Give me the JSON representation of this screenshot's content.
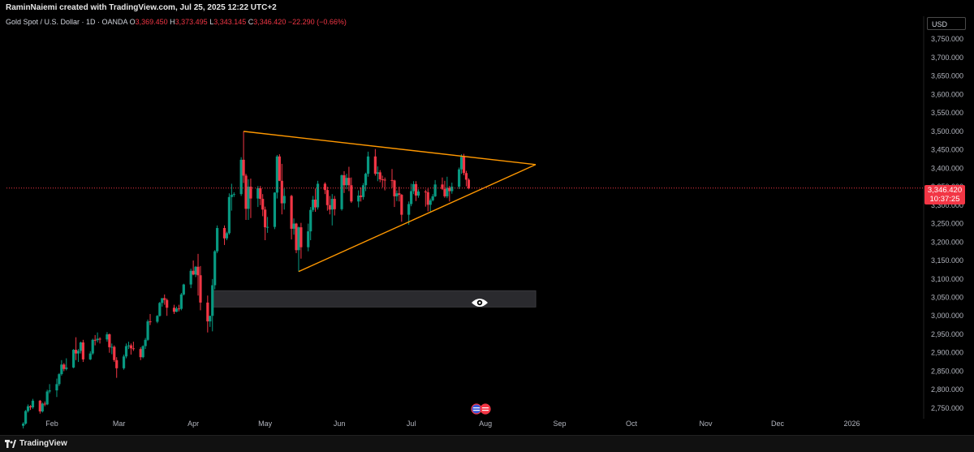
{
  "header": {
    "created_by": "RaminNaiemi created with TradingView.com, Jul 25, 2025 12:22 UTC+2"
  },
  "legend": {
    "symbol": "Gold Spot / U.S. Dollar · 1D · OANDA",
    "o_label": "O",
    "o_value": "3,369.450",
    "h_label": "H",
    "h_value": "3,373.495",
    "l_label": "L",
    "l_value": "3,343.145",
    "c_label": "C",
    "c_value": "3,346.420",
    "change": "−22.290 (−0.66%)"
  },
  "currency": "USD",
  "last_price": {
    "price": "3,346.420",
    "countdown": "10:37:25"
  },
  "footer": {
    "brand": "TradingView"
  },
  "colors": {
    "up": "#089981",
    "down": "#f23645",
    "pattern": "#ff9800",
    "background": "#000000",
    "price_line": "#f23645"
  },
  "chart_data": {
    "type": "candlestick",
    "symbol": "XAUUSD",
    "timeframe": "1D",
    "y_ticks": [
      2750,
      2800,
      2850,
      2900,
      2950,
      3000,
      3050,
      3100,
      3150,
      3200,
      3250,
      3300,
      3350,
      3400,
      3450,
      3500,
      3550,
      3600,
      3650,
      3700,
      3750
    ],
    "y_tick_labels": [
      "2,750.000",
      "2,800.000",
      "2,850.000",
      "2,900.000",
      "2,950.000",
      "3,000.000",
      "3,050.000",
      "3,100.000",
      "3,150.000",
      "3,200.000",
      "3,250.000",
      "3,300.000",
      "3,350.000",
      "3,400.000",
      "3,450.000",
      "3,500.000",
      "3,550.000",
      "3,600.000",
      "3,650.000",
      "3,700.000",
      "3,750.000"
    ],
    "ylim": [
      2730,
      3790
    ],
    "x_ticks": [
      "Feb",
      "Mar",
      "Apr",
      "May",
      "Jun",
      "Jul",
      "Aug",
      "Sep",
      "Oct",
      "Nov",
      "Dec",
      "2026"
    ],
    "x_tick_dates": [
      "2025-02-01",
      "2025-03-01",
      "2025-04-01",
      "2025-05-01",
      "2025-06-01",
      "2025-07-01",
      "2025-08-01",
      "2025-09-01",
      "2025-10-01",
      "2025-11-01",
      "2025-12-01",
      "2026-01-01"
    ],
    "xlim": [
      "2025-01-13",
      "2026-01-31"
    ],
    "current_price": 3346.42,
    "candles": [
      [
        "2025-01-20",
        2702,
        2712,
        2695,
        2708
      ],
      [
        "2025-01-21",
        2708,
        2745,
        2705,
        2742
      ],
      [
        "2025-01-22",
        2742,
        2760,
        2738,
        2755
      ],
      [
        "2025-01-23",
        2755,
        2758,
        2745,
        2752
      ],
      [
        "2025-01-24",
        2752,
        2775,
        2748,
        2770
      ],
      [
        "2025-01-27",
        2770,
        2772,
        2735,
        2741
      ],
      [
        "2025-01-28",
        2741,
        2765,
        2738,
        2762
      ],
      [
        "2025-01-29",
        2762,
        2768,
        2755,
        2760
      ],
      [
        "2025-01-30",
        2760,
        2800,
        2758,
        2795
      ],
      [
        "2025-01-31",
        2795,
        2815,
        2790,
        2798
      ],
      [
        "2025-02-03",
        2798,
        2830,
        2780,
        2815
      ],
      [
        "2025-02-04",
        2815,
        2845,
        2810,
        2842
      ],
      [
        "2025-02-05",
        2842,
        2880,
        2838,
        2868
      ],
      [
        "2025-02-06",
        2868,
        2872,
        2850,
        2856
      ],
      [
        "2025-02-07",
        2856,
        2885,
        2852,
        2860
      ],
      [
        "2025-02-10",
        2860,
        2910,
        2858,
        2908
      ],
      [
        "2025-02-11",
        2908,
        2942,
        2880,
        2898
      ],
      [
        "2025-02-12",
        2898,
        2910,
        2875,
        2905
      ],
      [
        "2025-02-13",
        2905,
        2930,
        2898,
        2928
      ],
      [
        "2025-02-14",
        2928,
        2935,
        2875,
        2882
      ],
      [
        "2025-02-17",
        2882,
        2904,
        2880,
        2898
      ],
      [
        "2025-02-18",
        2898,
        2938,
        2894,
        2935
      ],
      [
        "2025-02-19",
        2935,
        2948,
        2920,
        2934
      ],
      [
        "2025-02-20",
        2934,
        2955,
        2928,
        2938
      ],
      [
        "2025-02-21",
        2938,
        2942,
        2925,
        2936
      ],
      [
        "2025-02-24",
        2936,
        2956,
        2930,
        2950
      ],
      [
        "2025-02-25",
        2950,
        2952,
        2900,
        2915
      ],
      [
        "2025-02-26",
        2915,
        2925,
        2896,
        2916
      ],
      [
        "2025-02-27",
        2916,
        2920,
        2875,
        2880
      ],
      [
        "2025-02-28",
        2880,
        2888,
        2832,
        2858
      ],
      [
        "2025-03-03",
        2858,
        2895,
        2854,
        2890
      ],
      [
        "2025-03-04",
        2890,
        2925,
        2885,
        2918
      ],
      [
        "2025-03-05",
        2918,
        2930,
        2910,
        2920
      ],
      [
        "2025-03-06",
        2920,
        2925,
        2895,
        2912
      ],
      [
        "2025-03-07",
        2912,
        2930,
        2905,
        2910
      ],
      [
        "2025-03-10",
        2910,
        2915,
        2880,
        2888
      ],
      [
        "2025-03-11",
        2888,
        2920,
        2885,
        2918
      ],
      [
        "2025-03-12",
        2918,
        2940,
        2910,
        2935
      ],
      [
        "2025-03-13",
        2935,
        2990,
        2932,
        2985
      ],
      [
        "2025-03-14",
        2985,
        3005,
        2975,
        2984
      ],
      [
        "2025-03-17",
        2984,
        3002,
        2980,
        3000
      ],
      [
        "2025-03-18",
        3000,
        3038,
        2998,
        3035
      ],
      [
        "2025-03-19",
        3035,
        3045,
        3025,
        3048
      ],
      [
        "2025-03-20",
        3048,
        3058,
        3030,
        3043
      ],
      [
        "2025-03-21",
        3043,
        3047,
        3000,
        3022
      ],
      [
        "2025-03-24",
        3022,
        3030,
        3005,
        3011
      ],
      [
        "2025-03-25",
        3011,
        3025,
        3010,
        3020
      ],
      [
        "2025-03-26",
        3020,
        3030,
        3012,
        3019
      ],
      [
        "2025-03-27",
        3019,
        3062,
        3015,
        3058
      ],
      [
        "2025-03-28",
        3058,
        3087,
        3055,
        3085
      ],
      [
        "2025-03-31",
        3085,
        3128,
        3075,
        3122
      ],
      [
        "2025-04-01",
        3122,
        3150,
        3110,
        3112
      ],
      [
        "2025-04-02",
        3112,
        3135,
        3105,
        3133
      ],
      [
        "2025-04-03",
        3133,
        3168,
        3055,
        3110
      ],
      [
        "2025-04-04",
        3110,
        3135,
        3015,
        3036
      ],
      [
        "2025-04-07",
        3036,
        3055,
        2955,
        2985
      ],
      [
        "2025-04-08",
        2985,
        3000,
        2970,
        3000
      ],
      [
        "2025-04-09",
        3000,
        3100,
        2958,
        3083
      ],
      [
        "2025-04-10",
        3083,
        3178,
        3072,
        3175
      ],
      [
        "2025-04-11",
        3175,
        3245,
        3170,
        3238
      ],
      [
        "2025-04-14",
        3238,
        3245,
        3192,
        3210
      ],
      [
        "2025-04-15",
        3210,
        3228,
        3205,
        3224
      ],
      [
        "2025-04-16",
        3224,
        3332,
        3220,
        3322
      ],
      [
        "2025-04-17",
        3322,
        3358,
        3285,
        3328
      ],
      [
        "2025-04-18",
        3328,
        3335,
        3322,
        3330
      ],
      [
        "2025-04-21",
        3330,
        3430,
        3325,
        3423
      ],
      [
        "2025-04-22",
        3423,
        3500,
        3360,
        3380
      ],
      [
        "2025-04-23",
        3380,
        3385,
        3260,
        3290
      ],
      [
        "2025-04-24",
        3290,
        3370,
        3260,
        3350
      ],
      [
        "2025-04-25",
        3350,
        3372,
        3265,
        3318
      ],
      [
        "2025-04-28",
        3318,
        3352,
        3295,
        3346
      ],
      [
        "2025-04-29",
        3346,
        3352,
        3300,
        3317
      ],
      [
        "2025-04-30",
        3317,
        3330,
        3270,
        3288
      ],
      [
        "2025-05-01",
        3288,
        3296,
        3205,
        3240
      ],
      [
        "2025-05-02",
        3240,
        3268,
        3225,
        3241
      ],
      [
        "2025-05-05",
        3241,
        3335,
        3235,
        3334
      ],
      [
        "2025-05-06",
        3334,
        3436,
        3318,
        3432
      ],
      [
        "2025-05-07",
        3432,
        3438,
        3365,
        3366
      ],
      [
        "2025-05-08",
        3366,
        3412,
        3275,
        3305
      ],
      [
        "2025-05-09",
        3305,
        3345,
        3288,
        3325
      ],
      [
        "2025-05-12",
        3325,
        3328,
        3207,
        3236
      ],
      [
        "2025-05-13",
        3236,
        3264,
        3220,
        3250
      ],
      [
        "2025-05-14",
        3250,
        3252,
        3170,
        3178
      ],
      [
        "2025-05-15",
        3178,
        3242,
        3120,
        3240
      ],
      [
        "2025-05-16",
        3240,
        3252,
        3155,
        3186
      ],
      [
        "2025-05-19",
        3186,
        3250,
        3175,
        3229
      ],
      [
        "2025-05-20",
        3229,
        3295,
        3205,
        3287
      ],
      [
        "2025-05-21",
        3287,
        3325,
        3282,
        3315
      ],
      [
        "2025-05-22",
        3315,
        3345,
        3282,
        3294
      ],
      [
        "2025-05-23",
        3294,
        3366,
        3288,
        3358
      ],
      [
        "2025-05-26",
        3358,
        3362,
        3330,
        3341
      ],
      [
        "2025-05-27",
        3341,
        3350,
        3285,
        3300
      ],
      [
        "2025-05-28",
        3300,
        3325,
        3275,
        3288
      ],
      [
        "2025-05-29",
        3288,
        3330,
        3245,
        3317
      ],
      [
        "2025-05-30",
        3317,
        3325,
        3272,
        3289
      ],
      [
        "2025-06-02",
        3289,
        3383,
        3285,
        3381
      ],
      [
        "2025-06-03",
        3381,
        3392,
        3333,
        3354
      ],
      [
        "2025-06-04",
        3354,
        3385,
        3343,
        3374
      ],
      [
        "2025-06-05",
        3374,
        3404,
        3338,
        3354
      ],
      [
        "2025-06-06",
        3354,
        3375,
        3306,
        3310
      ],
      [
        "2025-06-09",
        3310,
        3340,
        3294,
        3326
      ],
      [
        "2025-06-10",
        3326,
        3348,
        3310,
        3322
      ],
      [
        "2025-06-11",
        3322,
        3360,
        3315,
        3354
      ],
      [
        "2025-06-12",
        3354,
        3388,
        3338,
        3385
      ],
      [
        "2025-06-13",
        3385,
        3445,
        3377,
        3432
      ],
      [
        "2025-06-16",
        3432,
        3452,
        3380,
        3385
      ],
      [
        "2025-06-17",
        3385,
        3405,
        3365,
        3389
      ],
      [
        "2025-06-18",
        3389,
        3395,
        3362,
        3370
      ],
      [
        "2025-06-19",
        3370,
        3380,
        3348,
        3369
      ],
      [
        "2025-06-20",
        3369,
        3375,
        3340,
        3368
      ],
      [
        "2025-06-23",
        3368,
        3398,
        3347,
        3367
      ],
      [
        "2025-06-24",
        3367,
        3369,
        3295,
        3324
      ],
      [
        "2025-06-25",
        3324,
        3340,
        3311,
        3332
      ],
      [
        "2025-06-26",
        3332,
        3350,
        3310,
        3328
      ],
      [
        "2025-06-27",
        3328,
        3330,
        3255,
        3274
      ],
      [
        "2025-06-30",
        3274,
        3310,
        3247,
        3303
      ],
      [
        "2025-07-01",
        3303,
        3358,
        3297,
        3338
      ],
      [
        "2025-07-02",
        3338,
        3365,
        3330,
        3357
      ],
      [
        "2025-07-03",
        3357,
        3365,
        3311,
        3326
      ],
      [
        "2025-07-04",
        3326,
        3343,
        3320,
        3337
      ],
      [
        "2025-07-07",
        3337,
        3342,
        3296,
        3335
      ],
      [
        "2025-07-08",
        3335,
        3345,
        3283,
        3301
      ],
      [
        "2025-07-09",
        3301,
        3318,
        3283,
        3313
      ],
      [
        "2025-07-10",
        3313,
        3330,
        3310,
        3324
      ],
      [
        "2025-07-11",
        3324,
        3368,
        3322,
        3356
      ],
      [
        "2025-07-14",
        3356,
        3375,
        3341,
        3344
      ],
      [
        "2025-07-15",
        3344,
        3366,
        3320,
        3324
      ],
      [
        "2025-07-16",
        3324,
        3377,
        3319,
        3347
      ],
      [
        "2025-07-17",
        3347,
        3352,
        3310,
        3338
      ],
      [
        "2025-07-18",
        3338,
        3361,
        3331,
        3350
      ],
      [
        "2025-07-21",
        3350,
        3402,
        3344,
        3397
      ],
      [
        "2025-07-22",
        3397,
        3438,
        3385,
        3431
      ],
      [
        "2025-07-23",
        3431,
        3439,
        3381,
        3387
      ],
      [
        "2025-07-24",
        3387,
        3393,
        3351,
        3369
      ],
      [
        "2025-07-25",
        3369,
        3373,
        3343,
        3346
      ]
    ],
    "triangle": {
      "upper": [
        [
          "2025-04-22",
          3500
        ],
        [
          "2025-08-22",
          3410
        ]
      ],
      "lower": [
        [
          "2025-05-15",
          3120
        ],
        [
          "2025-08-22",
          3410
        ]
      ]
    },
    "zone": {
      "from": "2025-04-09",
      "to": "2025-08-22",
      "top": 3068,
      "bottom": 3024
    }
  }
}
